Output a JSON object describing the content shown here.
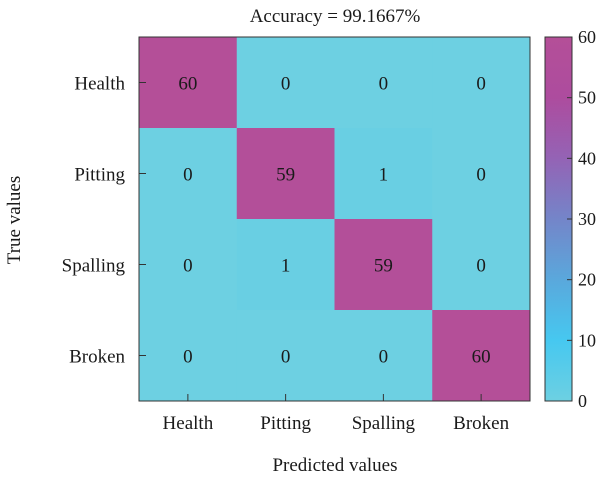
{
  "chart_data": {
    "type": "heatmap",
    "title": "Accuracy = 99.1667%",
    "xlabel": "Predicted values",
    "ylabel": "True values",
    "x_categories": [
      "Health",
      "Pitting",
      "Spalling",
      "Broken"
    ],
    "y_categories": [
      "Health",
      "Pitting",
      "Spalling",
      "Broken"
    ],
    "values": [
      [
        60,
        0,
        0,
        0
      ],
      [
        0,
        59,
        1,
        0
      ],
      [
        0,
        1,
        59,
        0
      ],
      [
        0,
        0,
        0,
        60
      ]
    ],
    "colorbar": {
      "min": 0,
      "max": 60,
      "ticks": [
        0,
        10,
        20,
        30,
        40,
        50,
        60
      ],
      "colormap": [
        "#6dd0e2",
        "#46c8f0",
        "#5aa8dc",
        "#7485c9",
        "#9463b5",
        "#ad4c9e",
        "#b44f98"
      ]
    },
    "grid": false
  }
}
